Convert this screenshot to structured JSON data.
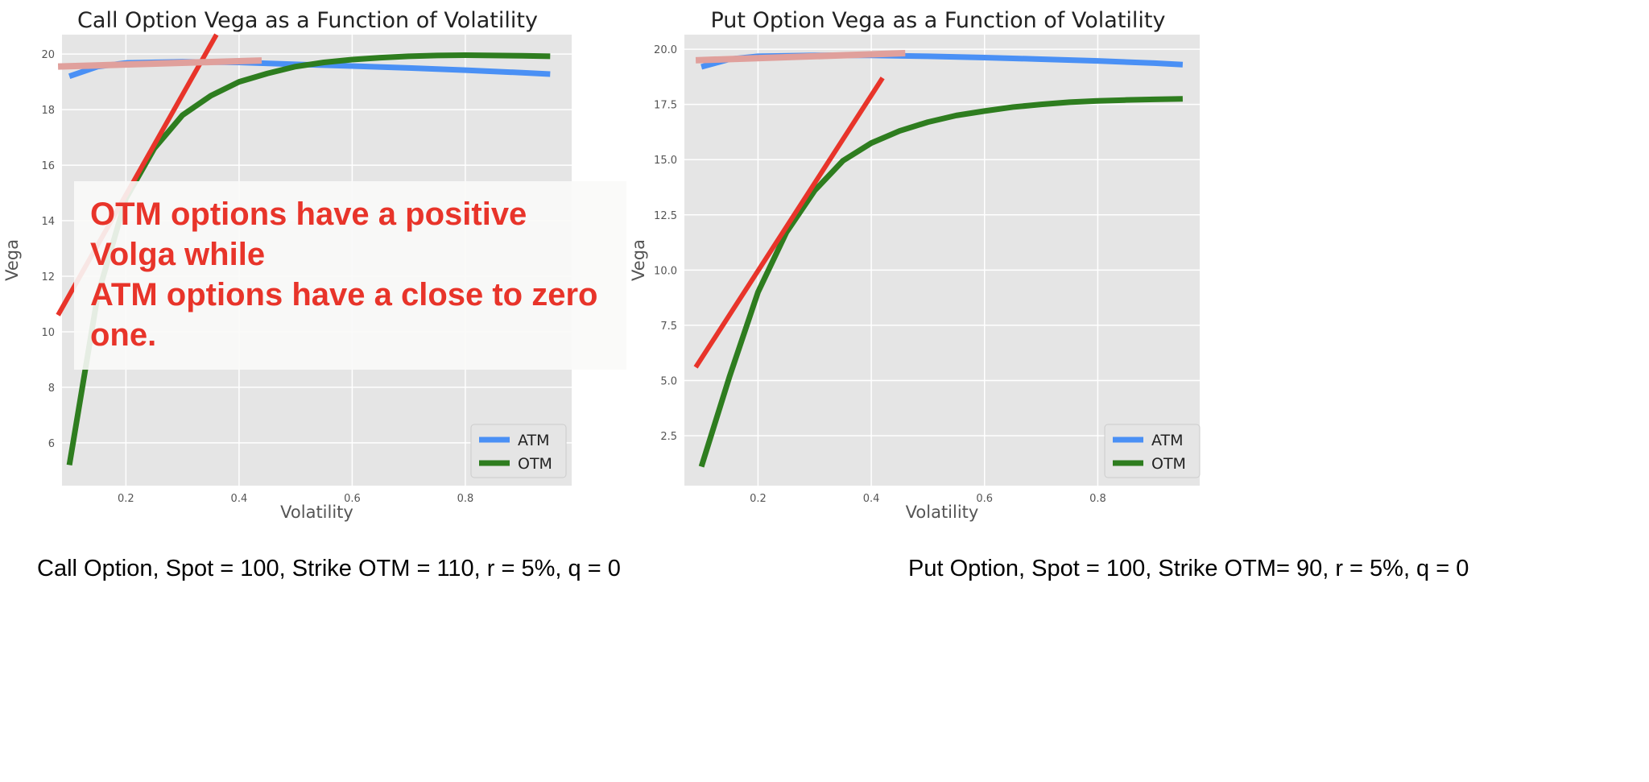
{
  "annotation": {
    "line1": "OTM options have a positive Volga while",
    "line2": "ATM options have a close to zero one.",
    "color": "#e8342a"
  },
  "captions": {
    "left": "Call Option, Spot = 100, Strike OTM = 110, r = 5%, q = 0",
    "right": "Put Option, Spot = 100, Strike OTM= 90, r = 5%, q = 0"
  },
  "colors": {
    "ATM": "#4a90f5",
    "OTM": "#2e7d1f",
    "tangent": "#e8342a",
    "flat_tangent": "#e0a09c",
    "plot_bg": "#e5e5e5"
  },
  "chart_data": [
    {
      "type": "line",
      "title": "Call Option Vega as a Function of Volatility",
      "xlabel": "Volatility",
      "ylabel": "Vega",
      "xlim": [
        0.087,
        0.988
      ],
      "ylim": [
        4.46,
        20.7
      ],
      "xticks": [
        0.2,
        0.4,
        0.6,
        0.8
      ],
      "xtick_labels": [
        "0.2",
        "0.4",
        "0.6",
        "0.8"
      ],
      "yticks": [
        6,
        8,
        10,
        12,
        14,
        16,
        18,
        20
      ],
      "ytick_labels": [
        "6",
        "8",
        "10",
        "12",
        "14",
        "16",
        "18",
        "20"
      ],
      "grid": true,
      "legend": "lower-right",
      "series": [
        {
          "name": "ATM",
          "x": [
            0.1,
            0.15,
            0.2,
            0.3,
            0.4,
            0.5,
            0.6,
            0.7,
            0.8,
            0.9,
            0.95
          ],
          "y": [
            19.2,
            19.55,
            19.68,
            19.72,
            19.7,
            19.63,
            19.57,
            19.5,
            19.42,
            19.33,
            19.28
          ]
        },
        {
          "name": "OTM",
          "x": [
            0.1,
            0.15,
            0.2,
            0.25,
            0.3,
            0.35,
            0.4,
            0.45,
            0.5,
            0.55,
            0.6,
            0.65,
            0.7,
            0.75,
            0.8,
            0.85,
            0.9,
            0.95
          ],
          "y": [
            5.2,
            11.3,
            14.8,
            16.6,
            17.8,
            18.5,
            19.0,
            19.3,
            19.55,
            19.7,
            19.8,
            19.87,
            19.92,
            19.95,
            19.96,
            19.95,
            19.94,
            19.92
          ]
        }
      ],
      "overlays": [
        {
          "kind": "tangent-otm",
          "x": [
            0.08,
            0.36
          ],
          "y": [
            10.6,
            20.7
          ]
        },
        {
          "kind": "tangent-atm",
          "x": [
            0.08,
            0.44
          ],
          "y": [
            19.55,
            19.77
          ]
        }
      ]
    },
    {
      "type": "line",
      "title": "Put Option Vega as a Function of Volatility",
      "xlabel": "Volatility",
      "ylabel": "Vega",
      "xlim": [
        0.07,
        0.98
      ],
      "ylim": [
        0.24,
        20.66
      ],
      "xticks": [
        0.2,
        0.4,
        0.6,
        0.8
      ],
      "xtick_labels": [
        "0.2",
        "0.4",
        "0.6",
        "0.8"
      ],
      "yticks": [
        2.5,
        5.0,
        7.5,
        10.0,
        12.5,
        15.0,
        17.5,
        20.0
      ],
      "ytick_labels": [
        "2.5",
        "5.0",
        "7.5",
        "10.0",
        "12.5",
        "15.0",
        "17.5",
        "20.0"
      ],
      "grid": true,
      "legend": "lower-right",
      "series": [
        {
          "name": "ATM",
          "x": [
            0.1,
            0.15,
            0.2,
            0.3,
            0.4,
            0.5,
            0.6,
            0.7,
            0.8,
            0.9,
            0.95
          ],
          "y": [
            19.2,
            19.55,
            19.68,
            19.72,
            19.72,
            19.68,
            19.62,
            19.55,
            19.47,
            19.37,
            19.3
          ]
        },
        {
          "name": "OTM",
          "x": [
            0.1,
            0.15,
            0.2,
            0.25,
            0.3,
            0.35,
            0.4,
            0.45,
            0.5,
            0.55,
            0.6,
            0.65,
            0.7,
            0.75,
            0.8,
            0.85,
            0.9,
            0.95
          ],
          "y": [
            1.1,
            5.2,
            9.0,
            11.7,
            13.6,
            14.95,
            15.75,
            16.3,
            16.7,
            17.0,
            17.2,
            17.38,
            17.5,
            17.6,
            17.66,
            17.7,
            17.73,
            17.75
          ]
        }
      ],
      "overlays": [
        {
          "kind": "tangent-otm",
          "x": [
            0.09,
            0.42
          ],
          "y": [
            5.6,
            18.7
          ]
        },
        {
          "kind": "tangent-atm",
          "x": [
            0.09,
            0.46
          ],
          "y": [
            19.5,
            19.82
          ]
        }
      ]
    }
  ]
}
